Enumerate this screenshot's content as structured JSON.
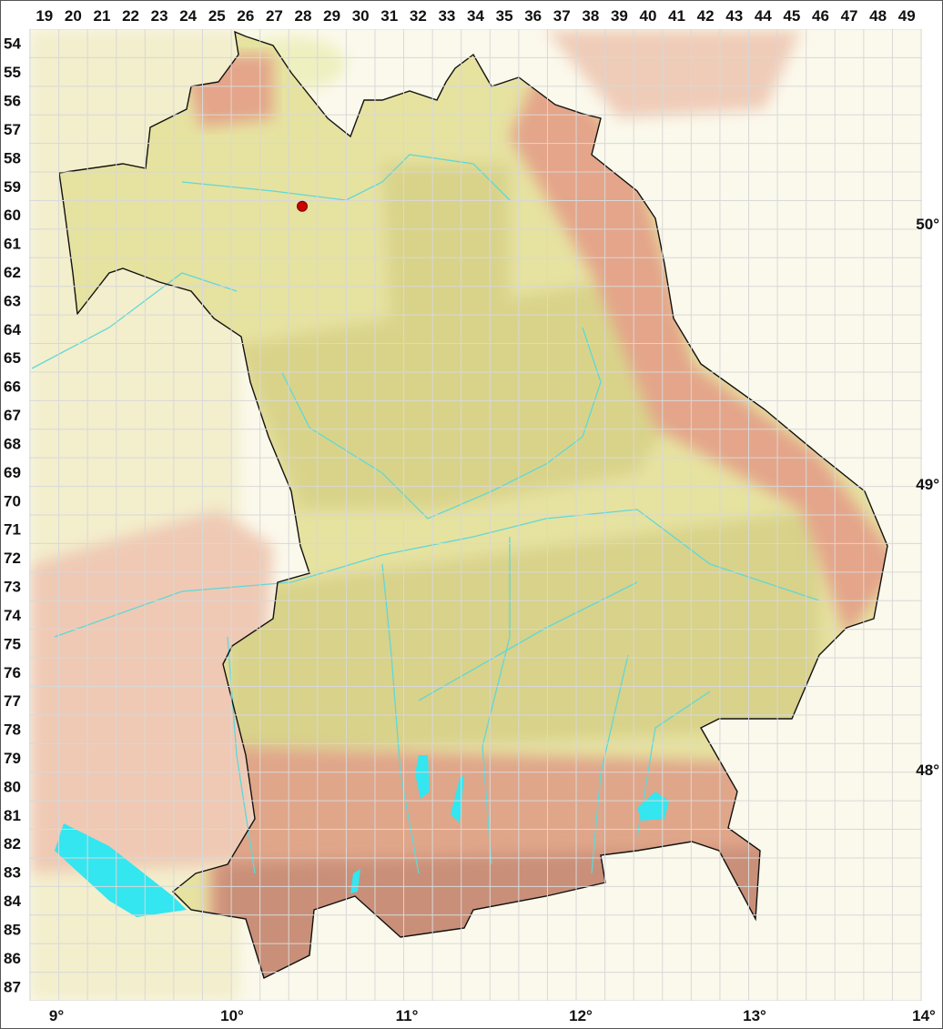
{
  "grid": {
    "columns": [
      "19",
      "20",
      "21",
      "22",
      "23",
      "24",
      "25",
      "26",
      "27",
      "28",
      "29",
      "30",
      "31",
      "32",
      "33",
      "34",
      "35",
      "36",
      "37",
      "38",
      "39",
      "40",
      "41",
      "42",
      "43",
      "44",
      "45",
      "46",
      "47",
      "48",
      "49"
    ],
    "rows": [
      "54",
      "55",
      "56",
      "57",
      "58",
      "59",
      "60",
      "61",
      "62",
      "63",
      "64",
      "65",
      "66",
      "67",
      "68",
      "69",
      "70",
      "71",
      "72",
      "73",
      "74",
      "75",
      "76",
      "77",
      "78",
      "79",
      "80",
      "81",
      "82",
      "83",
      "84",
      "85",
      "86",
      "87"
    ]
  },
  "latitude_labels": [
    "50°",
    "49°",
    "48°"
  ],
  "longitude_labels": [
    "9°",
    "10°",
    "11°",
    "12°",
    "13°",
    "14°"
  ],
  "colors": {
    "lowland": "#e6e2a0",
    "hills": "#d9d38a",
    "upland": "#e4a58a",
    "mountain": "#c98f78",
    "outside": "#f1ead0",
    "water": "#33e6f0",
    "border": "#111111",
    "marker": "#cc0000",
    "gridline": "#d8d8d8"
  },
  "marker": {
    "kind": "occurrence-dot",
    "grid_column": "28",
    "grid_row": "60"
  }
}
